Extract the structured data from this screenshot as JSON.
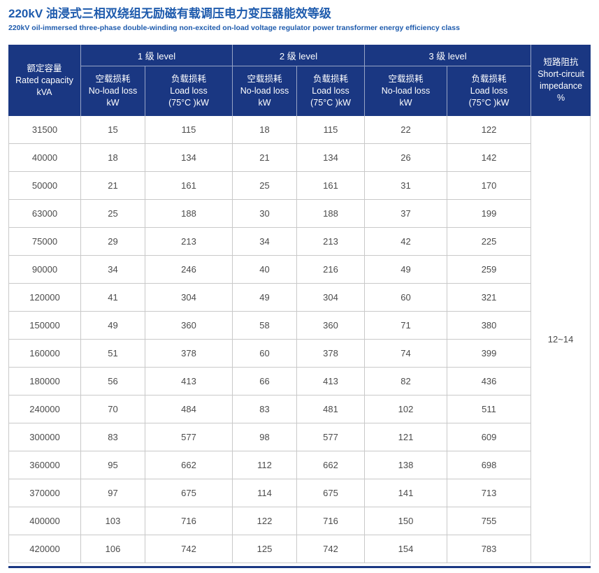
{
  "page": {
    "title_zh": "220kV 油浸式三相双绕组无励磁有载调压电力变压器能效等级",
    "title_en": "220kV oil-immersed three-phase double-winding non-excited on-load voltage regulator power transformer energy efficiency class"
  },
  "colors": {
    "header_bg": "#1a3782",
    "title_blue": "#1e5bad",
    "grid_gray": "#c9c9c9",
    "cell_text": "#4b4b4b"
  },
  "table": {
    "capacity_header": {
      "zh": "额定容量",
      "en": "Rated capacity",
      "unit": "kVA"
    },
    "level_headers": [
      "1 级 level",
      "2 级 level",
      "3 级 level"
    ],
    "noload_header": {
      "zh": "空载损耗",
      "en": "No-load loss",
      "unit": "kW"
    },
    "load_header": {
      "zh": "负载损耗",
      "en": "Load loss",
      "unit": "(75°C )kW"
    },
    "impedance_header": {
      "zh": "短路阻抗",
      "en_line1": "Short-circuit",
      "en_line2": "impedance",
      "unit": "%"
    },
    "impedance_value": "12~14",
    "rows": [
      [
        "31500",
        "15",
        "115",
        "18",
        "115",
        "22",
        "122"
      ],
      [
        "40000",
        "18",
        "134",
        "21",
        "134",
        "26",
        "142"
      ],
      [
        "50000",
        "21",
        "161",
        "25",
        "161",
        "31",
        "170"
      ],
      [
        "63000",
        "25",
        "188",
        "30",
        "188",
        "37",
        "199"
      ],
      [
        "75000",
        "29",
        "213",
        "34",
        "213",
        "42",
        "225"
      ],
      [
        "90000",
        "34",
        "246",
        "40",
        "216",
        "49",
        "259"
      ],
      [
        "120000",
        "41",
        "304",
        "49",
        "304",
        "60",
        "321"
      ],
      [
        "150000",
        "49",
        "360",
        "58",
        "360",
        "71",
        "380"
      ],
      [
        "160000",
        "51",
        "378",
        "60",
        "378",
        "74",
        "399"
      ],
      [
        "180000",
        "56",
        "413",
        "66",
        "413",
        "82",
        "436"
      ],
      [
        "240000",
        "70",
        "484",
        "83",
        "481",
        "102",
        "511"
      ],
      [
        "300000",
        "83",
        "577",
        "98",
        "577",
        "121",
        "609"
      ],
      [
        "360000",
        "95",
        "662",
        "112",
        "662",
        "138",
        "698"
      ],
      [
        "370000",
        "97",
        "675",
        "114",
        "675",
        "141",
        "713"
      ],
      [
        "400000",
        "103",
        "716",
        "122",
        "716",
        "150",
        "755"
      ],
      [
        "420000",
        "106",
        "742",
        "125",
        "742",
        "154",
        "783"
      ]
    ]
  }
}
